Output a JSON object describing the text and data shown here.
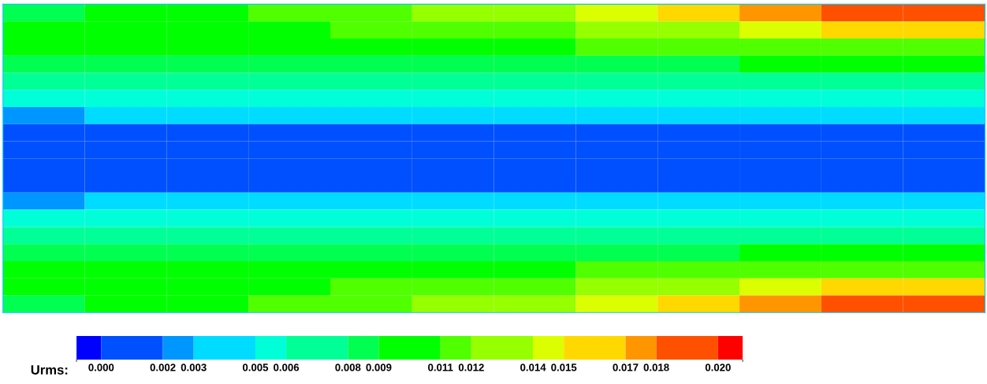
{
  "chart_data": {
    "type": "heatmap",
    "clabel": "Urms:",
    "categories": [
      null,
      null,
      null,
      null,
      null,
      null,
      null,
      null,
      null,
      null,
      null,
      null
    ],
    "y_categories": [
      null,
      null,
      null,
      null,
      null,
      null,
      null,
      null,
      null,
      null,
      null,
      null,
      null,
      null,
      null,
      null,
      null,
      null
    ],
    "cells": [
      [
        0.0086,
        0.01,
        0.01,
        0.0114,
        0.0114,
        0.0129,
        0.0129,
        0.0143,
        0.0157,
        0.0171,
        0.0186,
        0.0186
      ],
      [
        0.01,
        0.01,
        0.01,
        0.01,
        0.0114,
        0.0114,
        0.0114,
        0.0129,
        0.0129,
        0.0143,
        0.0157,
        0.0157
      ],
      [
        0.01,
        0.01,
        0.01,
        0.01,
        0.01,
        0.01,
        0.01,
        0.0114,
        0.0114,
        0.0114,
        0.0114,
        0.0114
      ],
      [
        0.0086,
        0.0086,
        0.0086,
        0.0086,
        0.0086,
        0.0086,
        0.0086,
        0.0086,
        0.0086,
        0.01,
        0.01,
        0.01
      ],
      [
        0.0071,
        0.0071,
        0.0071,
        0.0071,
        0.0071,
        0.0071,
        0.0071,
        0.0071,
        0.0071,
        0.0071,
        0.0071,
        0.0071
      ],
      [
        0.0057,
        0.0057,
        0.0057,
        0.0057,
        0.0057,
        0.0057,
        0.0057,
        0.0057,
        0.0057,
        0.0057,
        0.0057,
        0.0057
      ],
      [
        0.0029,
        0.0043,
        0.0043,
        0.0043,
        0.0043,
        0.0043,
        0.0043,
        0.0043,
        0.0043,
        0.0043,
        0.0043,
        0.0043
      ],
      [
        0.0014,
        0.0014,
        0.0014,
        0.0014,
        0.0014,
        0.0014,
        0.0014,
        0.0014,
        0.0014,
        0.0014,
        0.0014,
        0.0014
      ],
      [
        0.0014,
        0.0014,
        0.0014,
        0.0014,
        0.0014,
        0.0014,
        0.0014,
        0.0014,
        0.0014,
        0.0014,
        0.0014,
        0.0014
      ],
      [
        0.0014,
        0.0014,
        0.0014,
        0.0014,
        0.0014,
        0.0014,
        0.0014,
        0.0014,
        0.0014,
        0.0014,
        0.0014,
        0.0014
      ],
      [
        0.0014,
        0.0014,
        0.0014,
        0.0014,
        0.0014,
        0.0014,
        0.0014,
        0.0014,
        0.0014,
        0.0014,
        0.0014,
        0.0014
      ],
      [
        0.0029,
        0.0043,
        0.0043,
        0.0043,
        0.0043,
        0.0043,
        0.0043,
        0.0043,
        0.0043,
        0.0043,
        0.0043,
        0.0043
      ],
      [
        0.0057,
        0.0057,
        0.0057,
        0.0057,
        0.0057,
        0.0057,
        0.0057,
        0.0057,
        0.0057,
        0.0057,
        0.0057,
        0.0057
      ],
      [
        0.0071,
        0.0071,
        0.0071,
        0.0071,
        0.0071,
        0.0071,
        0.0071,
        0.0071,
        0.0071,
        0.0071,
        0.0071,
        0.0071
      ],
      [
        0.0086,
        0.0086,
        0.0086,
        0.0086,
        0.0086,
        0.0086,
        0.0086,
        0.0086,
        0.0086,
        0.01,
        0.01,
        0.01
      ],
      [
        0.01,
        0.01,
        0.01,
        0.01,
        0.01,
        0.01,
        0.01,
        0.0114,
        0.0114,
        0.0114,
        0.0114,
        0.0114
      ],
      [
        0.01,
        0.01,
        0.01,
        0.01,
        0.0114,
        0.0114,
        0.0114,
        0.0129,
        0.0129,
        0.0143,
        0.0157,
        0.0157
      ],
      [
        0.0086,
        0.01,
        0.01,
        0.0114,
        0.0114,
        0.0129,
        0.0129,
        0.0143,
        0.0157,
        0.0171,
        0.0186,
        0.0186
      ]
    ],
    "colors": [
      "#0000ff",
      "#0050ff",
      "#0096ff",
      "#00dcff",
      "#00ffd8",
      "#00ff96",
      "#00ff50",
      "#00ff00",
      "#50ff00",
      "#96ff00",
      "#dcff00",
      "#ffd800",
      "#ff9600",
      "#ff5000",
      "#ff0000"
    ],
    "clim": [
      -0.0008,
      0.0208
    ],
    "cticks": [
      {
        "value": 0.0,
        "label": "0.000"
      },
      {
        "value": 0.002,
        "label": "0.002"
      },
      {
        "value": 0.003,
        "label": "0.003"
      },
      {
        "value": 0.005,
        "label": "0.005"
      },
      {
        "value": 0.006,
        "label": "0.006"
      },
      {
        "value": 0.008,
        "label": "0.008"
      },
      {
        "value": 0.009,
        "label": "0.009"
      },
      {
        "value": 0.011,
        "label": "0.011"
      },
      {
        "value": 0.012,
        "label": "0.012"
      },
      {
        "value": 0.014,
        "label": "0.014"
      },
      {
        "value": 0.015,
        "label": "0.015"
      },
      {
        "value": 0.017,
        "label": "0.017"
      },
      {
        "value": 0.018,
        "label": "0.018"
      },
      {
        "value": 0.02,
        "label": "0.020"
      }
    ],
    "tick_labels": false
  }
}
